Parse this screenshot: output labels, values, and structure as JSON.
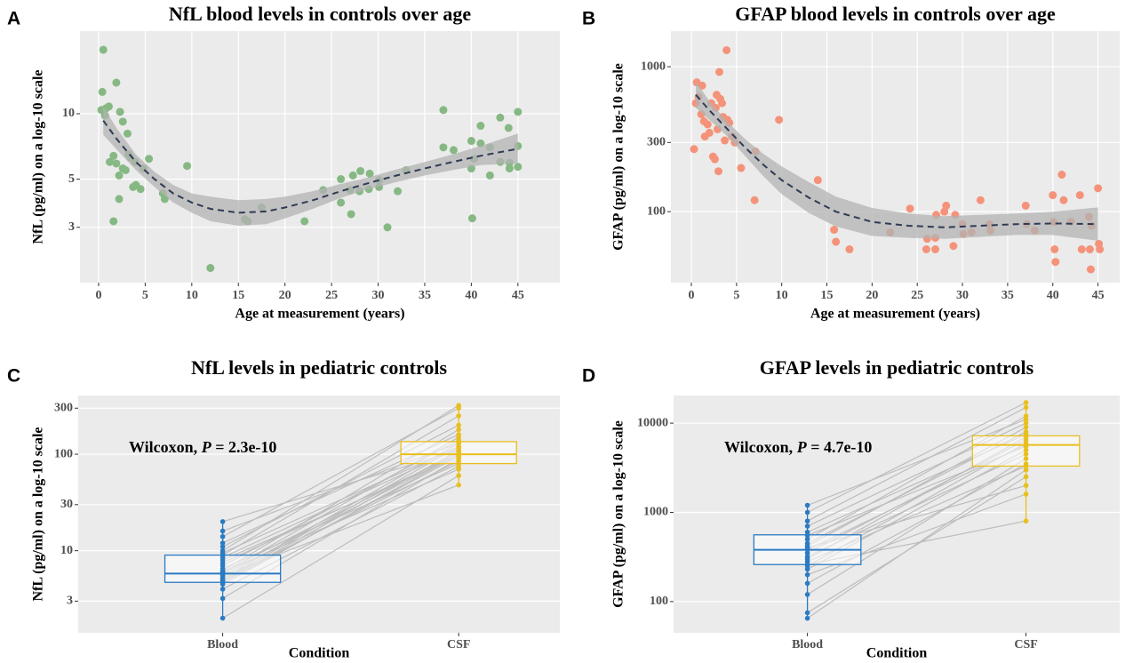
{
  "chart_data": [
    {
      "type": "scatter",
      "panel_label": "A",
      "title": "NfL blood levels in controls over age",
      "xlabel": "Age at measurement (years)",
      "ylabel": "NfL (pg/ml) on a log-10 scale",
      "log_y": true,
      "grid": true,
      "xlim": [
        -2,
        49.5
      ],
      "xticks": [
        0,
        5,
        10,
        15,
        20,
        25,
        30,
        35,
        40,
        45
      ],
      "ylim": [
        1.67,
        24
      ],
      "yticks": [
        3,
        5,
        10
      ],
      "color": "#86b884",
      "x": [
        0.5,
        0.4,
        0.3,
        0.8,
        1.1,
        0.7,
        1.9,
        2.3,
        2.6,
        3.1,
        1.2,
        1.6,
        1.9,
        2.2,
        2.6,
        2.9,
        3.2,
        3.4,
        3.9,
        3.7,
        4.0,
        4.5,
        4.8,
        5.4,
        1.6,
        2.2,
        6.9,
        7.1,
        9.5,
        12,
        15.7,
        16,
        17.5,
        22.1,
        24.1,
        26,
        26,
        27,
        27.1,
        27.3,
        28.1,
        29.1,
        28,
        29,
        30.1,
        30.1,
        31,
        32.1,
        33,
        37,
        37,
        38.1,
        40,
        40.3,
        40,
        40.1,
        41,
        41,
        42,
        42,
        43.1,
        43.1,
        44,
        44.1,
        44.1,
        45,
        45,
        45
      ],
      "values": [
        19.7,
        12.6,
        10.4,
        10.6,
        10.8,
        9.8,
        13.9,
        10.2,
        9.2,
        8.1,
        6.0,
        6.4,
        5.9,
        5.2,
        5.6,
        5.5,
        6.5,
        6.3,
        6.0,
        4.6,
        4.7,
        4.5,
        5.6,
        6.2,
        3.2,
        4.05,
        4.3,
        4.05,
        5.75,
        1.95,
        3.27,
        3.2,
        3.7,
        3.2,
        4.45,
        5.0,
        3.9,
        4.45,
        3.45,
        5.2,
        5.45,
        5.3,
        4.4,
        4.5,
        4.95,
        4.6,
        3.0,
        4.4,
        5.5,
        10.4,
        7.0,
        6.8,
        7.5,
        6.2,
        5.6,
        3.3,
        8.8,
        7.3,
        7.0,
        5.2,
        9.6,
        6.0,
        8.6,
        5.95,
        5.6,
        10.2,
        7.1,
        5.7
      ],
      "trend": {
        "color": "#2f3b55",
        "band_color": "#b3b3b3",
        "x": [
          0.5,
          2,
          4,
          6,
          8,
          10,
          12,
          15,
          18,
          20,
          23,
          26,
          29,
          32,
          35,
          38,
          41,
          45
        ],
        "values": [
          9.3,
          7.6,
          6.0,
          5.0,
          4.3,
          3.9,
          3.65,
          3.5,
          3.55,
          3.7,
          4.0,
          4.4,
          4.8,
          5.2,
          5.6,
          6.0,
          6.4,
          6.9
        ],
        "lower": [
          8.0,
          6.8,
          5.5,
          4.6,
          3.9,
          3.5,
          3.2,
          3.05,
          3.1,
          3.3,
          3.65,
          4.1,
          4.5,
          4.85,
          5.2,
          5.5,
          5.8,
          5.9
        ],
        "upper": [
          10.8,
          8.5,
          6.5,
          5.4,
          4.7,
          4.3,
          4.15,
          4.0,
          4.05,
          4.15,
          4.4,
          4.75,
          5.1,
          5.55,
          6.0,
          6.5,
          7.1,
          8.1
        ]
      }
    },
    {
      "type": "scatter",
      "panel_label": "B",
      "title": "GFAP blood levels in controls over age",
      "xlabel": "Age at measurement (years)",
      "ylabel": "GFAP (pg/ml) on a log-10 scale",
      "log_y": true,
      "grid": true,
      "xlim": [
        -2.26,
        47.4
      ],
      "xticks": [
        0,
        5,
        10,
        15,
        20,
        25,
        30,
        35,
        40,
        45
      ],
      "ylim": [
        32.4,
        1760
      ],
      "yticks": [
        100,
        300,
        1000
      ],
      "color": "#f4937a",
      "x": [
        0.3,
        0.5,
        0.6,
        0.8,
        1.1,
        1.2,
        1.4,
        1.5,
        1.8,
        2,
        2.2,
        2.4,
        2.6,
        2.7,
        2.8,
        2.9,
        3.0,
        3.1,
        3.2,
        3.4,
        3.5,
        3.7,
        3.9,
        4.0,
        4.2,
        4.5,
        4.8,
        5.5,
        7,
        7.1,
        9.7,
        14,
        15.8,
        16,
        17.5,
        22,
        24.2,
        26,
        26.1,
        27,
        27,
        27.1,
        28,
        28.2,
        29,
        29.2,
        30,
        30.1,
        31,
        32,
        33,
        33.1,
        37,
        37.1,
        38,
        40,
        40.1,
        40.2,
        40.3,
        41,
        41.2,
        42,
        43,
        43.2,
        44,
        44.1,
        44.2,
        44.3,
        45,
        45.1,
        45.2
      ],
      "values": [
        270,
        560,
        780,
        620,
        470,
        740,
        420,
        330,
        400,
        350,
        560,
        240,
        230,
        520,
        640,
        370,
        190,
        920,
        600,
        560,
        450,
        310,
        1300,
        430,
        410,
        330,
        300,
        200,
        120,
        260,
        430,
        165,
        75,
        62,
        55,
        72,
        105,
        55,
        65,
        55,
        66,
        95,
        100,
        110,
        58,
        95,
        82,
        70,
        72,
        120,
        82,
        74,
        110,
        82,
        74,
        130,
        85,
        55,
        45,
        180,
        120,
        85,
        130,
        55,
        92,
        55,
        40,
        80,
        145,
        60,
        55
      ],
      "trend": {
        "color": "#2f3b55",
        "band_color": "#b3b3b3",
        "x": [
          0.5,
          2,
          4,
          6,
          8,
          10,
          13,
          16,
          20,
          24,
          28,
          32,
          36,
          40,
          45
        ],
        "values": [
          640,
          500,
          370,
          275,
          210,
          165,
          125,
          100,
          85,
          80,
          78,
          80,
          82,
          83,
          82
        ],
        "lower": [
          520,
          430,
          330,
          240,
          175,
          132,
          98,
          79,
          68,
          66,
          65,
          67,
          69,
          69,
          63
        ],
        "upper": [
          790,
          580,
          415,
          315,
          250,
          205,
          160,
          127,
          106,
          97,
          93,
          95,
          97,
          100,
          107
        ]
      }
    },
    {
      "type": "box",
      "panel_label": "C",
      "title": "NfL levels in pediatric controls",
      "xlabel": "Condition",
      "ylabel": "NfL (pg/ml) on a log-10 scale",
      "log_y": true,
      "grid": true,
      "ylim": [
        1.41,
        406
      ],
      "yticks": [
        3,
        10,
        30,
        100,
        300
      ],
      "categories": [
        "Blood",
        "CSF"
      ],
      "pair_color": "#bdbdbd",
      "annotation": {
        "test": "Wilcoxon, ",
        "p_symbol": "P",
        "p_text": " = 2.3e-10"
      },
      "series": [
        {
          "color": "#2a7bc4",
          "whisker_low": 2,
          "q1": 4.7,
          "median": 5.8,
          "q3": 9,
          "whisker_high": 20,
          "values": [
            2,
            3.2,
            4,
            4.5,
            4.7,
            4.8,
            5,
            5,
            5.2,
            5.5,
            5.6,
            5.8,
            6,
            6,
            6.2,
            6.5,
            7,
            7.5,
            8,
            8.5,
            9,
            9.5,
            10,
            11,
            12,
            14,
            16,
            20
          ]
        },
        {
          "color": "#e8bf1e",
          "whisker_low": 48,
          "q1": 80,
          "median": 100,
          "q3": 135,
          "whisker_high": 320,
          "values": [
            60,
            90,
            75,
            100,
            95,
            110,
            85,
            120,
            130,
            48,
            100,
            150,
            105,
            70,
            180,
            80,
            140,
            100,
            95,
            115,
            250,
            120,
            320,
            200,
            160,
            300,
            130,
            110
          ]
        }
      ]
    },
    {
      "type": "box",
      "panel_label": "D",
      "title": "GFAP levels in pediatric controls",
      "xlabel": "Condition",
      "ylabel": "GFAP (pg/ml) on a log-10 scale",
      "log_y": true,
      "grid": true,
      "ylim": [
        44.7,
        20400
      ],
      "yticks": [
        100,
        1000,
        10000
      ],
      "categories": [
        "Blood",
        "CSF"
      ],
      "pair_color": "#bdbdbd",
      "annotation": {
        "test": "Wilcoxon, ",
        "p_symbol": "P",
        "p_text": " = 4.7e-10"
      },
      "series": [
        {
          "color": "#2a7bc4",
          "whisker_low": 65,
          "q1": 260,
          "median": 380,
          "q3": 560,
          "whisker_high": 1200,
          "values": [
            65,
            75,
            120,
            160,
            200,
            230,
            250,
            260,
            280,
            300,
            320,
            350,
            380,
            400,
            420,
            450,
            500,
            550,
            600,
            700,
            800,
            1000,
            1200
          ]
        },
        {
          "color": "#e8bf1e",
          "whisker_low": 800,
          "q1": 3300,
          "median": 5700,
          "q3": 7200,
          "whisker_high": 17000,
          "values": [
            3000,
            2500,
            4000,
            3500,
            1600,
            5000,
            6000,
            800,
            3300,
            7000,
            4500,
            6500,
            5700,
            2000,
            9000,
            8000,
            12000,
            5500,
            7500,
            10000,
            15000,
            17000,
            11000
          ]
        }
      ]
    }
  ]
}
